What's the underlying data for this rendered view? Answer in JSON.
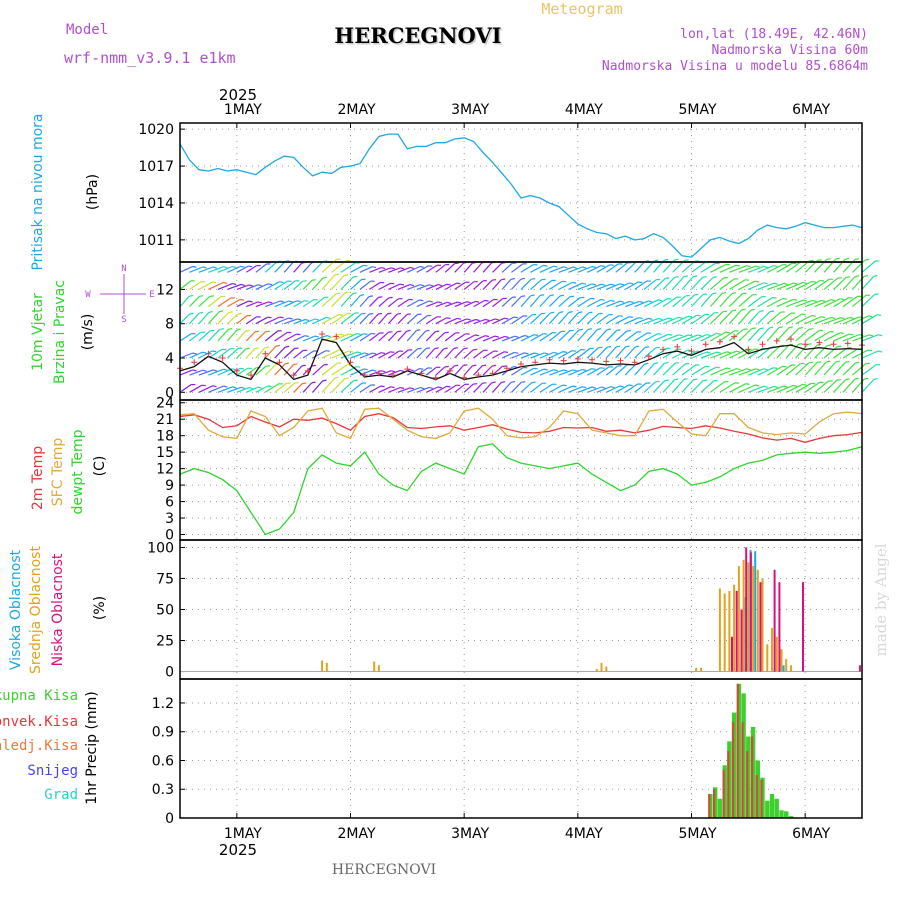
{
  "header": {
    "title": "HERCEGNOVI",
    "model_label": "Model",
    "model_name": "wrf-nmm_v3.9.1 e1km",
    "subtitle": "Meteogram",
    "coords": "lon,lat (18.49E, 42.46N)",
    "elevation": "Nadmorska Visina 60m",
    "model_elevation": "Nadmorska Visina u modelu 85.6864m",
    "year": "2025"
  },
  "footer": {
    "location": "HERCEGNOVI",
    "year": "2025"
  },
  "watermark": "made by Angel",
  "colors": {
    "pressure": "#1ea7e6",
    "temp2m": "#e8363a",
    "sfc": "#e0a93a",
    "dewpt": "#2fd42f",
    "high_cloud": "#19a9e6",
    "mid_cloud": "#e3a21a",
    "low_cloud": "#d5117f",
    "rain_total": "#3ecf2e",
    "rain_conv": "#e8363a",
    "snow": "#4444ee",
    "graupel": "#2ecfcf",
    "wind_speed": "#111111",
    "gust": "#e8363a",
    "model": "#b04fd0"
  },
  "chart_data": [
    {
      "type": "line",
      "panel": "pressure",
      "labels": [
        "Pritisak na nivou mora",
        "(hPa)"
      ],
      "x_ticks": [
        "1MAY",
        "2MAY",
        "3MAY",
        "4MAY",
        "5MAY",
        "6MAY"
      ],
      "x": [
        0,
        2,
        4,
        6,
        8,
        10,
        12,
        14,
        16,
        18,
        20,
        22,
        24,
        26,
        28,
        30,
        32,
        34,
        36,
        38,
        40,
        42,
        44,
        46,
        48,
        50,
        52,
        54,
        56,
        58,
        60,
        62,
        64,
        66,
        68,
        70,
        72,
        74,
        76,
        78,
        80,
        82,
        84,
        86,
        88,
        90,
        92,
        94,
        96,
        98,
        100,
        102,
        104,
        106,
        108,
        110,
        112,
        114,
        116,
        118,
        120,
        122,
        124,
        126,
        128,
        130,
        132,
        134,
        136,
        138,
        140,
        142,
        144
      ],
      "values": [
        1018.8,
        1017.5,
        1016.7,
        1016.6,
        1016.8,
        1016.6,
        1016.7,
        1016.5,
        1016.3,
        1016.9,
        1017.4,
        1017.8,
        1017.7,
        1016.9,
        1016.2,
        1016.5,
        1016.4,
        1016.9,
        1017.0,
        1017.2,
        1018.4,
        1019.4,
        1019.6,
        1019.6,
        1018.4,
        1018.6,
        1018.6,
        1018.9,
        1018.9,
        1019.2,
        1019.3,
        1019.0,
        1018.1,
        1017.3,
        1016.4,
        1015.5,
        1014.4,
        1014.6,
        1014.4,
        1014.0,
        1013.7,
        1013.0,
        1012.3,
        1011.9,
        1011.6,
        1011.5,
        1011.1,
        1011.3,
        1011.0,
        1011.1,
        1011.5,
        1011.2,
        1010.5,
        1009.7,
        1009.6,
        1010.3,
        1011.0,
        1011.2,
        1010.9,
        1010.7,
        1011.1,
        1011.8,
        1012.2,
        1012.0,
        1011.9,
        1012.1,
        1012.4,
        1012.2,
        1012.0,
        1012.0,
        1012.1,
        1012.2,
        1012.0
      ],
      "yticks": [
        1011,
        1014,
        1017,
        1020
      ],
      "ylim": [
        1009.2,
        1020.5
      ],
      "grid": true
    },
    {
      "type": "line",
      "panel": "wind",
      "labels": [
        "10m Vjetar",
        "Brzina i Pravac",
        "(m/s)"
      ],
      "compass": {
        "n": "N",
        "e": "E",
        "s": "S",
        "w": "W"
      },
      "x": [
        0,
        3,
        6,
        9,
        12,
        15,
        18,
        21,
        24,
        27,
        30,
        33,
        36,
        39,
        42,
        45,
        48,
        51,
        54,
        57,
        60,
        63,
        66,
        69,
        72,
        75,
        78,
        81,
        84,
        87,
        90,
        93,
        96,
        99,
        102,
        105,
        108,
        111,
        114,
        117,
        120,
        123,
        126,
        129,
        132,
        135,
        138,
        141,
        144
      ],
      "values": [
        2.5,
        3.0,
        4.2,
        3.5,
        2.0,
        1.5,
        4.0,
        3.2,
        1.5,
        2.0,
        6.2,
        5.8,
        3.2,
        1.8,
        2.0,
        1.8,
        2.5,
        2.0,
        1.5,
        2.2,
        1.5,
        1.8,
        2.0,
        2.5,
        3.0,
        3.2,
        3.4,
        3.3,
        3.5,
        3.4,
        3.2,
        3.3,
        3.2,
        3.8,
        4.5,
        4.8,
        4.3,
        5.0,
        5.2,
        5.8,
        4.5,
        5.0,
        5.3,
        5.5,
        5.0,
        5.2,
        5.0,
        5.1,
        5.0
      ],
      "gust": [
        2.8,
        3.5,
        4.5,
        4.0,
        2.5,
        2.0,
        4.5,
        3.5,
        2.0,
        2.5,
        6.8,
        6.5,
        3.5,
        2.0,
        2.2,
        2.0,
        2.7,
        2.2,
        1.7,
        2.5,
        1.7,
        2.0,
        2.2,
        2.8,
        3.3,
        3.5,
        3.8,
        3.7,
        3.9,
        3.8,
        3.6,
        3.7,
        3.5,
        4.2,
        5.0,
        5.3,
        4.8,
        5.6,
        5.9,
        6.5,
        5.0,
        5.6,
        6.0,
        6.2,
        5.6,
        5.8,
        5.6,
        5.7,
        5.5
      ],
      "yticks": [
        0,
        4,
        8,
        12
      ],
      "ylim": [
        -0.9,
        15.2
      ],
      "grid": true
    },
    {
      "type": "line",
      "panel": "temperature",
      "labels": [
        "2m Temp",
        "SFC Temp",
        "dewpt Temp",
        "(C)"
      ],
      "x": [
        0,
        3,
        6,
        9,
        12,
        15,
        18,
        21,
        24,
        27,
        30,
        33,
        36,
        39,
        42,
        45,
        48,
        51,
        54,
        57,
        60,
        63,
        66,
        69,
        72,
        75,
        78,
        81,
        84,
        87,
        90,
        93,
        96,
        99,
        102,
        105,
        108,
        111,
        114,
        117,
        120,
        123,
        126,
        129,
        132,
        135,
        138,
        141,
        144
      ],
      "series": [
        {
          "key": "temp2m",
          "values": [
            21.5,
            21.8,
            21.0,
            19.5,
            19.8,
            21.5,
            20.5,
            19.6,
            21.0,
            20.8,
            21.2,
            20.2,
            19.0,
            21.5,
            22.0,
            21.3,
            19.5,
            19.3,
            19.6,
            19.8,
            19.0,
            19.5,
            20.0,
            19.2,
            18.6,
            18.5,
            18.8,
            19.5,
            19.4,
            19.5,
            18.8,
            19.0,
            18.5,
            19.0,
            19.7,
            19.5,
            19.3,
            19.8,
            19.4,
            18.8,
            18.3,
            17.6,
            17.2,
            17.5,
            16.8,
            17.5,
            18.0,
            18.2,
            18.6
          ]
        },
        {
          "key": "sfc",
          "values": [
            21.8,
            22.0,
            19.0,
            17.8,
            17.5,
            22.5,
            21.5,
            18.0,
            19.5,
            22.5,
            23.0,
            18.5,
            17.5,
            22.8,
            23.0,
            21.0,
            19.0,
            17.8,
            17.5,
            18.5,
            22.5,
            23.0,
            21.0,
            18.0,
            17.6,
            17.8,
            19.5,
            22.5,
            22.0,
            19.0,
            18.5,
            18.0,
            18.0,
            22.5,
            22.8,
            20.5,
            18.3,
            18.0,
            22.0,
            22.0,
            19.5,
            18.5,
            18.2,
            18.5,
            18.3,
            20.5,
            22.0,
            22.3,
            22.0
          ]
        },
        {
          "key": "dewpt",
          "values": [
            11.0,
            12.0,
            11.3,
            10.0,
            8.0,
            4.0,
            0.0,
            1.0,
            4.0,
            12.0,
            14.5,
            13.0,
            12.5,
            15.0,
            11.0,
            9.0,
            8.0,
            11.5,
            13.0,
            12.0,
            11.0,
            16.0,
            16.5,
            14.0,
            13.0,
            12.5,
            12.0,
            12.5,
            13.0,
            11.0,
            9.5,
            8.0,
            9.0,
            11.5,
            12.0,
            11.0,
            9.0,
            9.5,
            10.5,
            12.0,
            13.0,
            13.5,
            14.5,
            14.8,
            15.0,
            14.8,
            15.0,
            15.3,
            16.0
          ]
        }
      ],
      "yticks": [
        0,
        3,
        6,
        9,
        12,
        15,
        18,
        21,
        24
      ],
      "ylim": [
        -1.0,
        24.5
      ],
      "grid": true
    },
    {
      "type": "bar",
      "panel": "cloud",
      "labels": [
        "Visoka Oblacnost",
        "Srednja Oblacnost",
        "Niska Oblacnost",
        "(%)"
      ],
      "x": [
        30,
        31,
        41,
        42,
        88,
        89,
        90,
        109,
        110,
        114,
        115,
        116,
        117,
        118,
        119,
        120,
        121,
        122,
        123,
        124,
        125,
        126,
        127,
        128,
        129,
        130,
        131,
        143
      ],
      "series": [
        {
          "key": "high_cloud",
          "values": [
            0,
            0,
            0,
            0,
            0,
            0,
            0,
            0,
            0,
            0,
            0,
            0,
            0,
            0,
            0,
            60,
            98,
            97,
            0,
            0,
            0,
            0,
            0,
            5,
            0,
            0,
            0,
            0
          ]
        },
        {
          "key": "mid_cloud",
          "values": [
            9,
            7,
            8,
            5,
            2,
            7,
            4,
            3,
            3,
            67,
            63,
            65,
            70,
            85,
            90,
            88,
            85,
            82,
            75,
            22,
            35,
            28,
            18,
            10,
            5,
            0,
            0,
            0
          ]
        },
        {
          "key": "low_cloud",
          "values": [
            0,
            0,
            0,
            0,
            0,
            0,
            0,
            0,
            0,
            0,
            0,
            28,
            65,
            50,
            100,
            96,
            0,
            72,
            0,
            0,
            82,
            72,
            0,
            0,
            0,
            0,
            72,
            5
          ]
        }
      ],
      "yticks": [
        0,
        25,
        50,
        75,
        100
      ],
      "ylim": [
        -6,
        106
      ],
      "grid": true
    },
    {
      "type": "bar",
      "panel": "precip",
      "labels": [
        "Ukupna Kisa",
        "Konvek.Kisa",
        "Zaledj.Kisa",
        "Snijeg",
        "Grad",
        "1hr Precip (mm)"
      ],
      "x": [
        112,
        113,
        114,
        115,
        116,
        117,
        118,
        119,
        120,
        121,
        122,
        123,
        124,
        125,
        126,
        127,
        128,
        129
      ],
      "series": [
        {
          "key": "rain_total",
          "values": [
            0.25,
            0.32,
            0.2,
            0.55,
            0.8,
            1.1,
            1.4,
            1.3,
            0.85,
            0.95,
            0.6,
            0.42,
            0.18,
            0.25,
            0.2,
            0.08,
            0.07,
            0.02
          ]
        },
        {
          "key": "rain_conv",
          "values": [
            0.25,
            0.3,
            0.05,
            0.5,
            0.7,
            1.0,
            1.4,
            1.0,
            0.7,
            0.85,
            0.45,
            0.4,
            0.05,
            0.1,
            0.05,
            0.02,
            0.02,
            0.0
          ]
        }
      ],
      "yticks": [
        0,
        0.3,
        0.6,
        0.9,
        1.2
      ],
      "ylim": [
        0,
        1.45
      ],
      "grid": true
    }
  ]
}
